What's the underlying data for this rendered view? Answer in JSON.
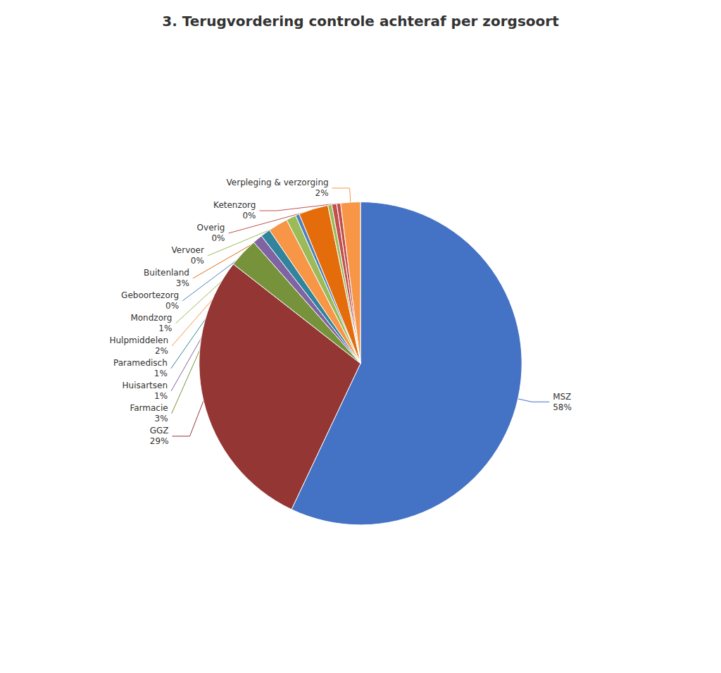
{
  "chart_data": {
    "type": "pie",
    "title": "3. Terugvordering controle achteraf per zorgsoort",
    "categories": [
      "MSZ",
      "GGZ",
      "Farmacie",
      "Huisartsen",
      "Paramedisch",
      "Hulpmiddelen",
      "Mondzorg",
      "Geboortezorg",
      "Buitenland",
      "Vervoer",
      "Overig",
      "Ketenzorg",
      "Verpleging & verzorging"
    ],
    "values": [
      58,
      29,
      3,
      1,
      1,
      2,
      1,
      0.4,
      3,
      0.4,
      0.5,
      0.4,
      2
    ],
    "value_labels": [
      "58%",
      "29%",
      "3%",
      "1%",
      "1%",
      "2%",
      "1%",
      "0%",
      "3%",
      "0%",
      "0%",
      "0%",
      "2%"
    ],
    "colors": [
      "#4472C4",
      "#943634",
      "#76933C",
      "#8064A2",
      "#31849B",
      "#F79646",
      "#9BBB59",
      "#4F81BD",
      "#E46C0A",
      "#9BBB59",
      "#C0504D",
      "#C0504D",
      "#F79646"
    ],
    "data_labels": true
  }
}
